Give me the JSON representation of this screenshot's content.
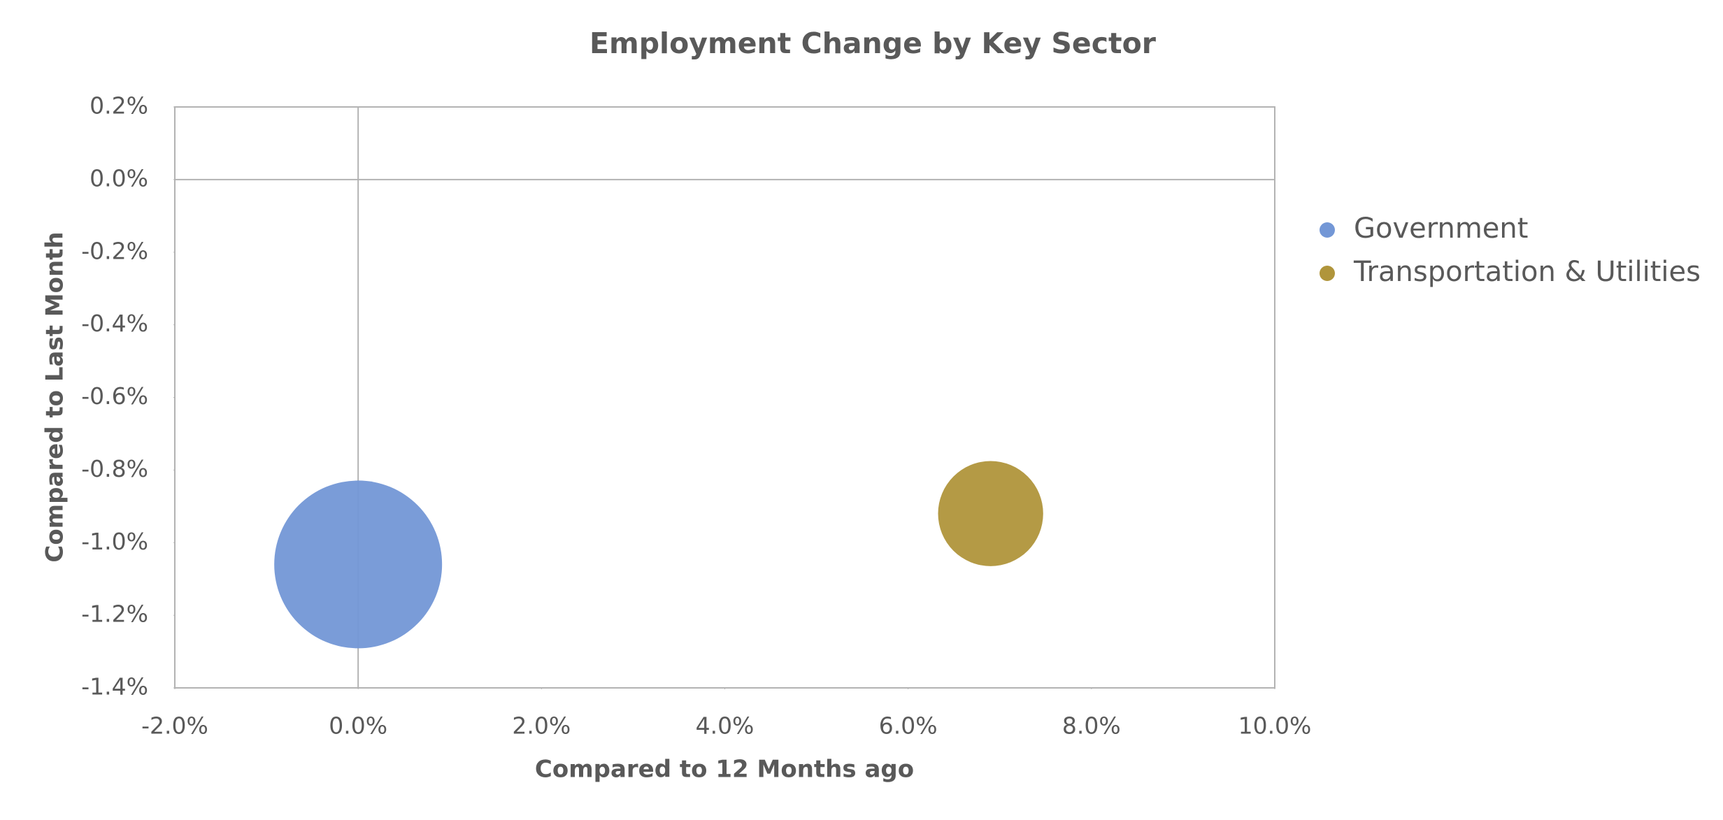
{
  "chart_data": {
    "type": "bubble",
    "title": "Employment Change by Key Sector",
    "x_label": "Compared to 12 Months ago",
    "y_label": "Compared to Last Month",
    "series": [
      {
        "name": "Government",
        "color": "#7397d6",
        "x": [
          0.0
        ],
        "values": [
          -1.06
        ],
        "sizes": [
          255
        ]
      },
      {
        "name": "Transportation & Utilities",
        "color": "#b0953b",
        "x": [
          6.9
        ],
        "values": [
          -0.92
        ],
        "sizes": [
          100
        ]
      }
    ],
    "xlim": [
      -2,
      10
    ],
    "xticks": [
      {
        "value": -2,
        "label": "-2.0%"
      },
      {
        "value": 0,
        "label": "0.0%"
      },
      {
        "value": 2,
        "label": "2.0%"
      },
      {
        "value": 4,
        "label": "4.0%"
      },
      {
        "value": 6,
        "label": "6.0%"
      },
      {
        "value": 8,
        "label": "8.0%"
      },
      {
        "value": 10,
        "label": "10.0%"
      }
    ],
    "ylim": [
      -1.4,
      0.2
    ],
    "yticks": [
      {
        "value": 0.2,
        "label": "0.2%"
      },
      {
        "value": 0,
        "label": "0.0%"
      },
      {
        "value": -0.2,
        "label": "-0.2%"
      },
      {
        "value": -0.4,
        "label": "-0.4%"
      },
      {
        "value": -0.6,
        "label": "-0.6%"
      },
      {
        "value": -0.8,
        "label": "-0.8%"
      },
      {
        "value": -1,
        "label": "-1.0%"
      },
      {
        "value": -1.2,
        "label": "-1.2%"
      },
      {
        "value": -1.4,
        "label": "-1.4%"
      }
    ],
    "grid": false,
    "legend": "right"
  }
}
